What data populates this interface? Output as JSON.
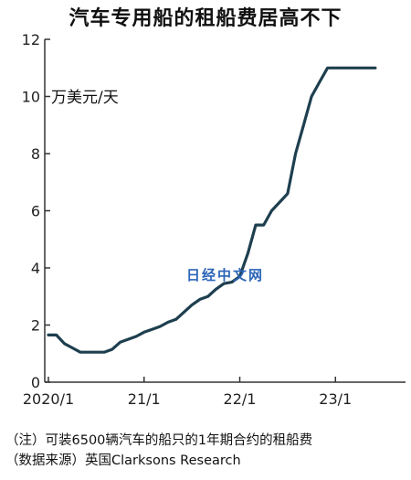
{
  "title": "汽车专用船的租船费居高不下",
  "unit_label": "万美元/天",
  "watermark": "日经中文网",
  "notes": {
    "line1": "（注）可装6500辆汽车的船只的1年期合约的租船费",
    "line2": "（数据来源）英国Clarksons Research"
  },
  "colors": {
    "line": "#1e3f4f",
    "axis": "#333333",
    "watermark": "#2b64b8"
  },
  "chart_data": {
    "type": "line",
    "title": "汽车专用船的租船费居高不下",
    "ylabel": "万美元/天",
    "xlabel": "",
    "ylim": [
      0,
      12
    ],
    "xlim": [
      0,
      41
    ],
    "yticks": [
      0,
      2,
      4,
      6,
      8,
      10,
      12
    ],
    "xticks": [
      {
        "value": 0,
        "label": "2020/1"
      },
      {
        "value": 12,
        "label": "21/1"
      },
      {
        "value": 24,
        "label": "22/1"
      },
      {
        "value": 36,
        "label": "23/1"
      }
    ],
    "grid": false,
    "series": [
      {
        "x": [
          0,
          1,
          2,
          3,
          4,
          5,
          6,
          7,
          8,
          9,
          10,
          11,
          12,
          13,
          14,
          15,
          16,
          17,
          18,
          19,
          20,
          21,
          22,
          23,
          24,
          25,
          26,
          27,
          28,
          29,
          30,
          31,
          32,
          33,
          34,
          35,
          36,
          37,
          38,
          39,
          40,
          41
        ],
        "values": [
          1.65,
          1.65,
          1.35,
          1.2,
          1.05,
          1.05,
          1.05,
          1.05,
          1.15,
          1.4,
          1.5,
          1.6,
          1.75,
          1.85,
          1.95,
          2.1,
          2.2,
          2.45,
          2.7,
          2.9,
          3.0,
          3.25,
          3.45,
          3.5,
          3.7,
          4.5,
          5.5,
          5.5,
          6.0,
          6.3,
          6.6,
          8.0,
          9.0,
          10.0,
          10.5,
          11.0,
          11.0,
          11.0,
          11.0,
          11.0,
          11.0,
          11.0
        ]
      }
    ]
  }
}
